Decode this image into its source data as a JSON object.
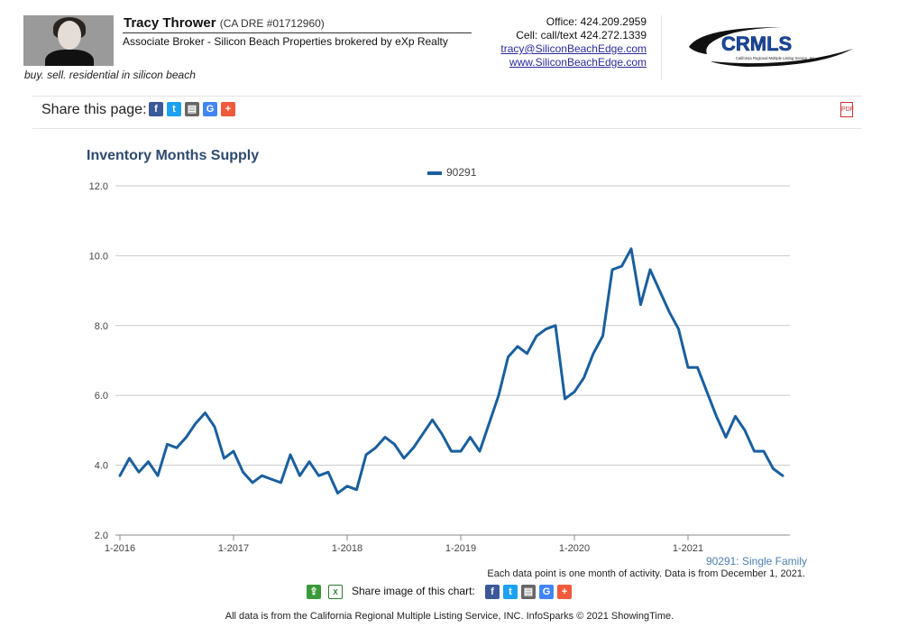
{
  "agent": {
    "name": "Tracy Thrower",
    "dre": "(CA DRE #01712960)",
    "title": "Associate Broker - Silicon Beach Properties brokered by eXp Realty",
    "tagline": "buy. sell. residential in silicon beach",
    "office": "Office: 424.209.2959",
    "cell": "Cell: call/text 424.272.1339",
    "email": "tracy@SiliconBeachEdge.com",
    "website": "www.SiliconBeachEdge.com"
  },
  "logo": {
    "text": "CRMLS",
    "subtext": "California Regional Multiple Listing Service, Inc."
  },
  "share": {
    "label": "Share this page:",
    "icons": [
      "facebook-icon",
      "twitter-icon",
      "print-icon",
      "google-icon",
      "plus-icon"
    ],
    "image_label": "Share image of this chart:"
  },
  "colors": {
    "series": "#1a5f9e",
    "title": "#2e4a6e",
    "facebook": "#3b5998",
    "twitter": "#1da1f2",
    "print": "#666666",
    "google": "#4285f4",
    "plus": "#f05a3c",
    "share_green": "#3a9a3a"
  },
  "chart_data": {
    "type": "line",
    "title": "Inventory Months Supply",
    "legend_position": "top-center",
    "grid": true,
    "ylim": [
      2.0,
      12.0
    ],
    "yticks": [
      "2.0",
      "4.0",
      "6.0",
      "8.0",
      "10.0",
      "12.0"
    ],
    "xticks": [
      "1-2016",
      "1-2017",
      "1-2018",
      "1-2019",
      "1-2020",
      "1-2021"
    ],
    "x_start": "1-2016",
    "x_end": "12-2021",
    "series": [
      {
        "name": "90291",
        "values": [
          3.7,
          4.2,
          3.8,
          4.1,
          3.7,
          4.6,
          4.5,
          4.8,
          5.2,
          5.5,
          5.1,
          4.2,
          4.4,
          3.8,
          3.5,
          3.7,
          3.6,
          3.5,
          4.3,
          3.7,
          4.1,
          3.7,
          3.8,
          3.2,
          3.4,
          3.3,
          4.3,
          4.5,
          4.8,
          4.6,
          4.2,
          4.5,
          4.9,
          5.3,
          4.9,
          4.4,
          4.4,
          4.8,
          4.4,
          5.2,
          6.0,
          7.1,
          7.4,
          7.2,
          7.7,
          7.9,
          8.0,
          5.9,
          6.1,
          6.5,
          7.2,
          7.7,
          9.6,
          9.7,
          10.2,
          8.6,
          9.6,
          9.0,
          8.4,
          7.9,
          6.8,
          6.8,
          6.1,
          5.4,
          4.8,
          5.4,
          5.0,
          4.4,
          4.4,
          3.9,
          3.7
        ]
      }
    ],
    "series_label": "90291: Single Family",
    "footnote": "Each data point is one month of activity. Data is from December 1, 2021."
  },
  "source": "All data is from the California Regional Multiple Listing Service, INC. InfoSparks © 2021 ShowingTime."
}
